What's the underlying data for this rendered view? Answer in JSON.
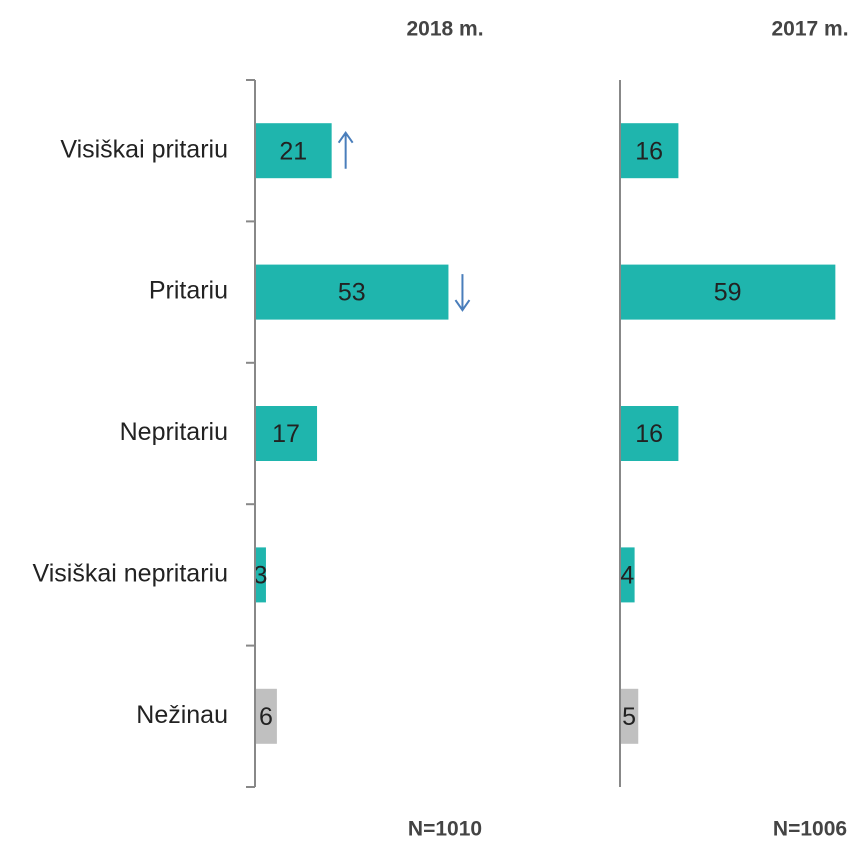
{
  "chart_data": {
    "type": "bar",
    "orientation": "horizontal",
    "categories": [
      "Visiškai pritariu",
      "Pritariu",
      "Nepritariu",
      "Visiškai nepritariu",
      "Nežinau"
    ],
    "colors": [
      "#1fb5ad",
      "#1fb5ad",
      "#1fb5ad",
      "#1fb5ad",
      "#c0c0c0"
    ],
    "xlim": [
      0,
      60
    ],
    "panels": [
      {
        "title": "2018 m.",
        "note": "N=1010",
        "values": [
          21,
          53,
          17,
          3,
          6
        ],
        "arrows": [
          "up",
          "down",
          null,
          null,
          null
        ],
        "arrow_color": "#4a7ebb"
      },
      {
        "title": "2017 m.",
        "note": "N=1006",
        "values": [
          16,
          59,
          16,
          4,
          5
        ]
      }
    ]
  }
}
